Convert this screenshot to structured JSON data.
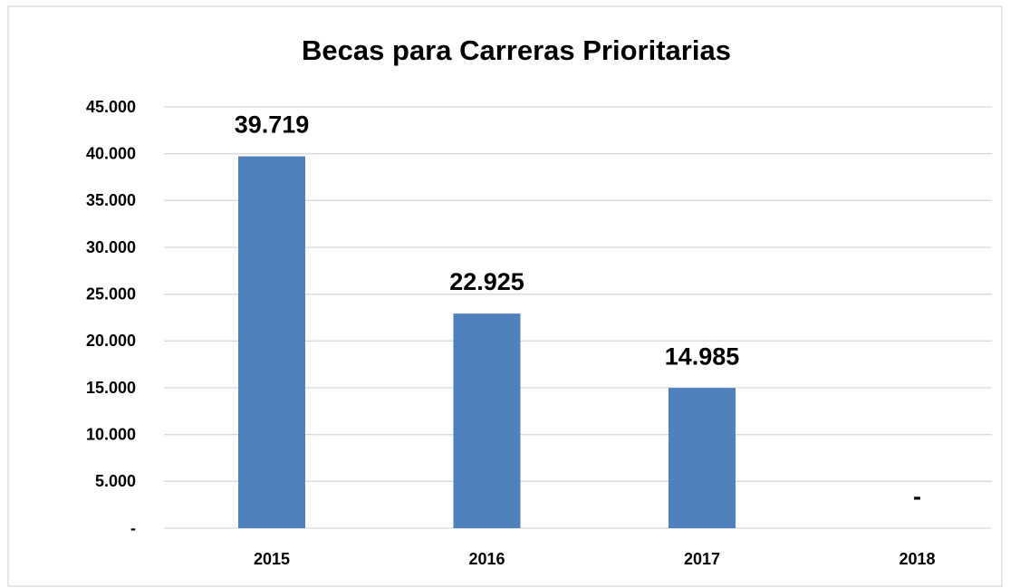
{
  "chart_data": {
    "type": "bar",
    "title": "Becas para Carreras Prioritarias",
    "categories": [
      "2015",
      "2016",
      "2017",
      "2018"
    ],
    "values": [
      39719,
      22925,
      14985,
      0
    ],
    "value_labels": [
      "39.719",
      "22.925",
      "14.985",
      "-"
    ],
    "color": "#4f81bd",
    "ylim": [
      0,
      45000
    ],
    "yticks": [
      {
        "value": 0,
        "label": "-"
      },
      {
        "value": 5000,
        "label": "5.000"
      },
      {
        "value": 10000,
        "label": "10.000"
      },
      {
        "value": 15000,
        "label": "15.000"
      },
      {
        "value": 20000,
        "label": "20.000"
      },
      {
        "value": 25000,
        "label": "25.000"
      },
      {
        "value": 30000,
        "label": "30.000"
      },
      {
        "value": 35000,
        "label": "35.000"
      },
      {
        "value": 40000,
        "label": "40.000"
      },
      {
        "value": 45000,
        "label": "45.000"
      }
    ],
    "grid": true
  }
}
